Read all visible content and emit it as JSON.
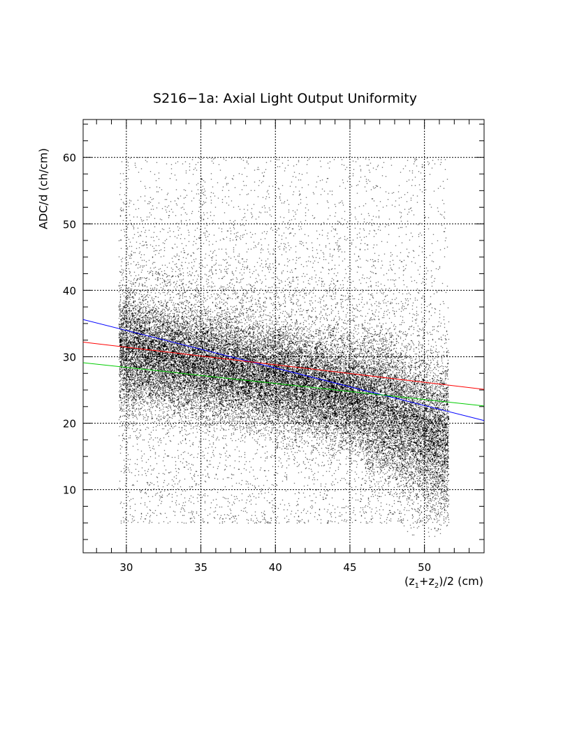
{
  "chart_data": {
    "type": "scatter",
    "title": "S216−1a: Axial Light Output Uniformity",
    "xlabel": {
      "open": "(z",
      "sub1": "1",
      "plus": "+z",
      "sub2": "2",
      "close": ")/2 (cm)"
    },
    "ylabel": "ADC/d (ch/cm)",
    "xlim": [
      27.1,
      54.0
    ],
    "ylim": [
      0.5,
      65.7
    ],
    "grid": true,
    "xticks": [
      30,
      35,
      40,
      45,
      50
    ],
    "xtick_labels": [
      "30",
      "35",
      "40",
      "45",
      "50"
    ],
    "yticks": [
      10,
      20,
      30,
      40,
      50,
      60
    ],
    "ytick_labels": [
      "10",
      "20",
      "30",
      "40",
      "50",
      "60"
    ],
    "x_minor_step": 1,
    "y_minor_step": 2.5,
    "scatter": {
      "n_points": 38000,
      "x_range": [
        29.5,
        51.6
      ],
      "core_mean": [
        [
          30,
          30.5
        ],
        [
          35,
          28.5
        ],
        [
          40,
          26.5
        ],
        [
          45,
          24
        ],
        [
          48,
          21
        ],
        [
          51,
          17
        ]
      ],
      "core_sigma": 3.8,
      "halo_fraction": 0.22,
      "halo_y_range": [
        5,
        60
      ]
    },
    "series": [
      {
        "name": "blue-fit",
        "color": "#0000ff",
        "x": [
          27.1,
          54.0
        ],
        "y": [
          35.6,
          20.4
        ]
      },
      {
        "name": "red-fit",
        "color": "#ff0000",
        "x": [
          27.1,
          54.0
        ],
        "y": [
          32.2,
          25.1
        ]
      },
      {
        "name": "green-fit",
        "color": "#00cc00",
        "x": [
          27.1,
          54.0
        ],
        "y": [
          29.1,
          22.6
        ]
      }
    ]
  }
}
